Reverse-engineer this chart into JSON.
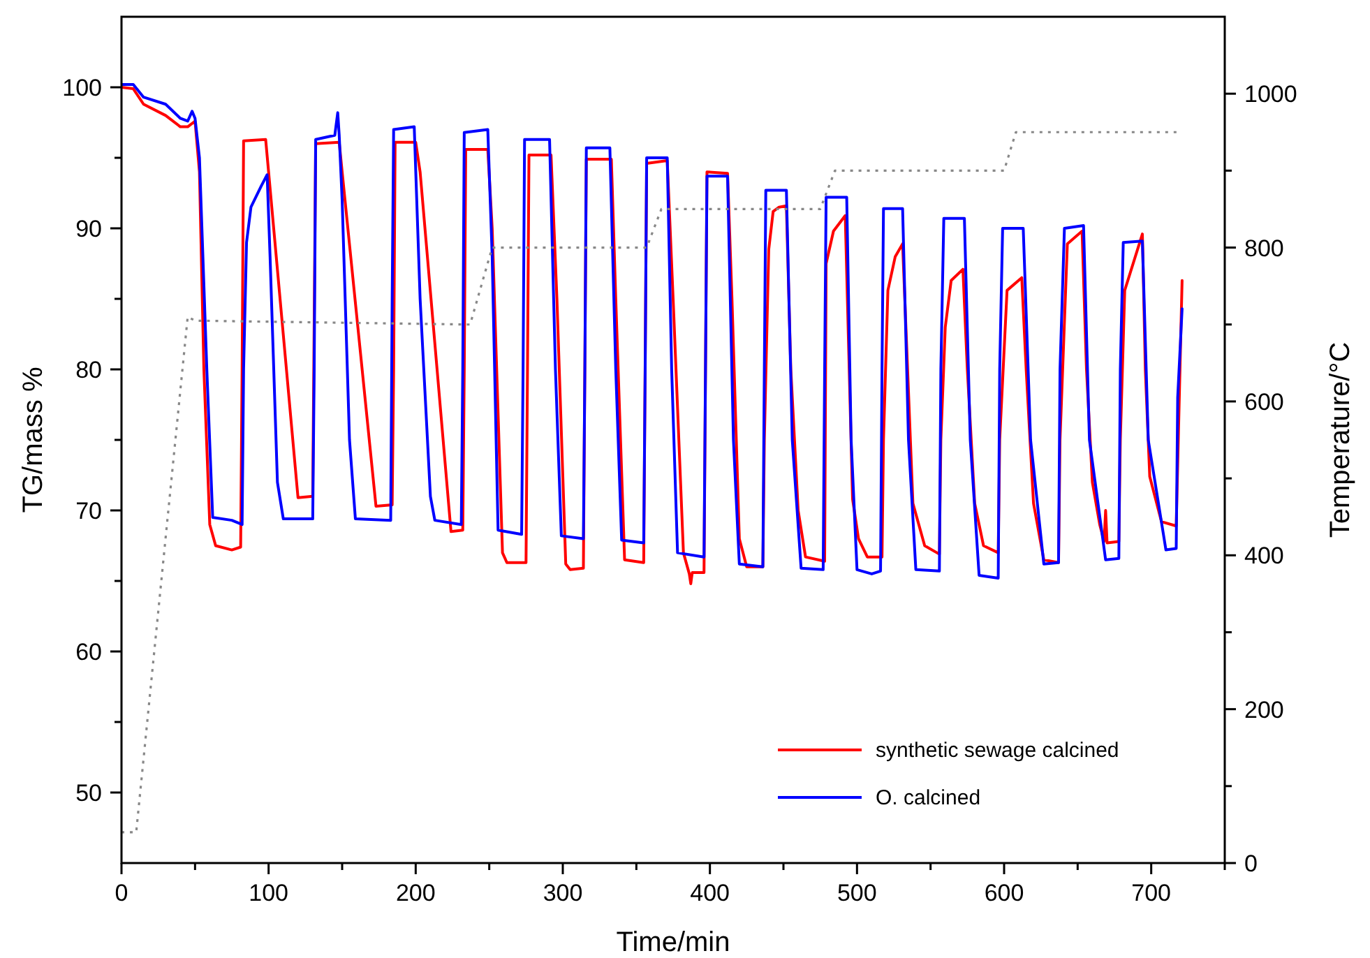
{
  "chart_data": {
    "type": "line",
    "xlabel": "Time/min",
    "ylabel": "TG/mass %",
    "y2label": "Temperature/°C",
    "legend": "bottom right",
    "xlim": [
      0,
      750
    ],
    "xticks": [
      0,
      {
        "value": 50,
        "label": null
      },
      100,
      {
        "value": 150,
        "label": null
      },
      200,
      {
        "value": 250,
        "label": null
      },
      300,
      {
        "value": 350,
        "label": null
      },
      400,
      {
        "value": 450,
        "label": null
      },
      500,
      {
        "value": 550,
        "label": null
      },
      600,
      {
        "value": 650,
        "label": null
      },
      700,
      {
        "value": 750,
        "label": null
      }
    ],
    "ylim": [
      45,
      105
    ],
    "yticks": [
      50,
      {
        "value": 55,
        "label": null
      },
      60,
      {
        "value": 65,
        "label": null
      },
      70,
      {
        "value": 75,
        "label": null
      },
      80,
      {
        "value": 85,
        "label": null
      },
      90,
      {
        "value": 95,
        "label": null
      },
      100
    ],
    "y2lim": [
      0,
      1100
    ],
    "y2ticks": [
      0,
      {
        "value": 100,
        "label": null
      },
      200,
      {
        "value": 300,
        "label": null
      },
      400,
      {
        "value": 500,
        "label": null
      },
      600,
      {
        "value": 700,
        "label": null
      },
      800,
      {
        "value": 900,
        "label": null
      },
      1000
    ],
    "series": [
      {
        "name": "synthetic sewage calcined",
        "color": "#ff0000",
        "x": [
          0,
          8,
          15,
          30,
          40,
          45,
          50,
          53,
          56,
          60,
          64,
          75,
          81,
          82,
          83,
          98,
          100,
          120,
          130,
          132,
          148,
          150,
          173,
          184,
          185,
          186,
          200,
          203,
          224,
          232,
          233,
          234,
          249,
          252,
          259,
          262,
          275,
          276,
          277,
          292,
          296,
          302,
          305,
          314,
          316,
          333,
          336,
          342,
          355,
          357,
          371,
          375,
          382,
          386,
          387,
          388,
          396,
          398,
          412,
          415,
          420,
          425,
          436,
          437,
          440,
          443,
          447,
          452,
          455,
          460,
          465,
          478,
          479,
          484,
          492,
          497,
          501,
          507,
          517,
          518,
          521,
          526,
          531,
          538,
          546,
          556,
          557,
          560,
          564,
          572,
          575,
          580,
          586,
          596,
          597,
          602,
          612,
          615,
          620,
          627,
          637,
          638,
          643,
          653,
          656,
          660,
          665,
          668,
          669,
          670,
          678,
          679,
          682,
          694,
          696,
          699,
          707,
          717,
          721
        ],
        "values": [
          100.0,
          99.9,
          98.8,
          98.0,
          97.2,
          97.2,
          97.6,
          94,
          80,
          69,
          67.5,
          67.2,
          67.4,
          80,
          96.2,
          96.3,
          94,
          70.9,
          71.0,
          96,
          96.1,
          94,
          70.3,
          70.4,
          80,
          96.1,
          96.1,
          94,
          68.5,
          68.6,
          80,
          95.6,
          95.6,
          90,
          67,
          66.3,
          66.3,
          80,
          95.2,
          95.2,
          85,
          66.2,
          65.8,
          65.9,
          94.9,
          94.9,
          85,
          66.5,
          66.3,
          94.6,
          94.8,
          85,
          67,
          65.5,
          64.8,
          65.6,
          65.6,
          94.0,
          93.9,
          85,
          68,
          66.0,
          66.0,
          75,
          88.5,
          91.2,
          91.5,
          91.6,
          80,
          70,
          66.7,
          66.4,
          87.5,
          89.8,
          90.9,
          70.8,
          68,
          66.7,
          66.7,
          75,
          85.6,
          88.0,
          88.9,
          70.5,
          67.5,
          66.9,
          75,
          83,
          86.3,
          87.1,
          80,
          70.5,
          67.5,
          67.0,
          75,
          85.6,
          86.5,
          80,
          70.5,
          66.5,
          66.3,
          75,
          88.9,
          89.8,
          80,
          72,
          69,
          67.8,
          70.0,
          67.7,
          67.8,
          75,
          85.6,
          89.6,
          80,
          72.4,
          69.2,
          68.9,
          86.3
        ]
      },
      {
        "name": "O. calcined",
        "color": "#0000ff",
        "x": [
          0,
          8,
          15,
          30,
          40,
          45,
          48,
          50,
          53,
          58,
          62,
          75,
          82,
          83,
          85,
          88,
          95,
          99,
          101,
          106,
          110,
          130,
          131,
          132,
          145,
          147,
          148,
          150,
          155,
          159,
          183,
          184,
          185,
          199,
          203,
          210,
          213,
          231,
          232,
          233,
          249,
          252,
          256,
          272,
          273,
          274,
          291,
          295,
          299,
          314,
          315,
          316,
          332,
          336,
          340,
          355,
          356,
          357,
          371,
          374,
          378,
          396,
          397,
          398,
          412,
          416,
          420,
          436,
          437,
          438,
          452,
          456,
          462,
          477,
          478,
          479,
          493,
          496,
          500,
          510,
          516,
          517,
          518,
          531,
          535,
          540,
          556,
          557,
          559,
          573,
          577,
          583,
          596,
          597,
          599,
          613,
          618,
          627,
          637,
          638,
          641,
          654,
          658,
          669,
          678,
          679,
          681,
          694,
          698,
          710,
          717,
          718,
          721
        ],
        "values": [
          100.2,
          100.2,
          99.3,
          98.8,
          97.8,
          97.6,
          98.3,
          97.8,
          95,
          80,
          69.5,
          69.3,
          69.0,
          80,
          89,
          91.5,
          93,
          93.8,
          88,
          72,
          69.4,
          69.4,
          80,
          96.3,
          96.6,
          98.2,
          96.6,
          92,
          75,
          69.4,
          69.3,
          85,
          97.0,
          97.2,
          85,
          71,
          69.3,
          69.0,
          80,
          96.8,
          97.0,
          88,
          68.6,
          68.3,
          80,
          96.3,
          96.3,
          80,
          68.2,
          68.0,
          80,
          95.7,
          95.7,
          80,
          67.9,
          67.7,
          80,
          95.0,
          95.0,
          80,
          67.0,
          66.7,
          80,
          93.7,
          93.7,
          75,
          66.2,
          66.0,
          80,
          92.7,
          92.7,
          75,
          65.9,
          65.8,
          80,
          92.2,
          92.2,
          75,
          65.8,
          65.5,
          65.7,
          80,
          91.4,
          91.4,
          75,
          65.8,
          65.7,
          80,
          90.7,
          90.7,
          75,
          65.4,
          65.2,
          80,
          90.0,
          90.0,
          75,
          66.2,
          66.3,
          80,
          90.0,
          90.2,
          75,
          66.5,
          66.6,
          80,
          89.0,
          89.1,
          75,
          67.2,
          67.3,
          78,
          84.3
        ]
      },
      {
        "color": "#888888",
        "axis": "y2",
        "line_style": "dotted",
        "x": [
          0,
          10,
          45,
          50,
          235,
          237,
          252,
          357,
          367,
          475,
          485,
          600,
          608,
          720
        ],
        "values": [
          40,
          40,
          710,
          705,
          700,
          700,
          800,
          800,
          850,
          850,
          900,
          900,
          950,
          950
        ]
      }
    ]
  }
}
